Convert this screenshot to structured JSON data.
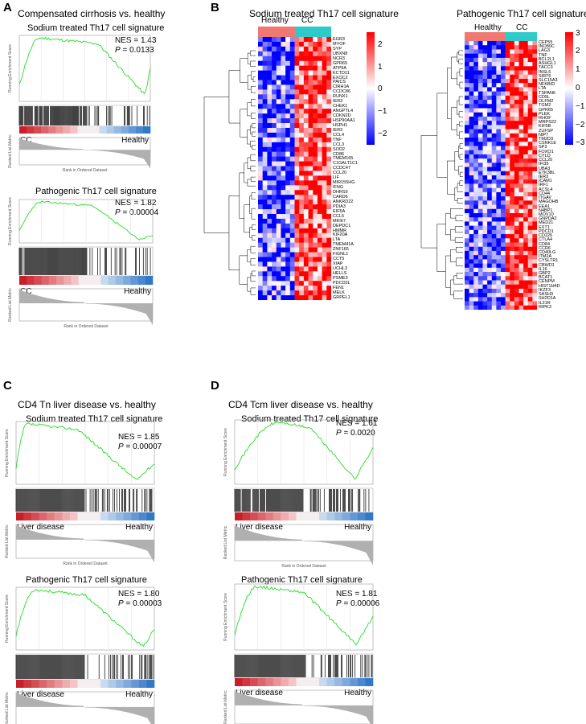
{
  "panels": {
    "A": {
      "label": "A",
      "title": "Compensated cirrhosis vs. healthy",
      "plots": [
        {
          "subtitle": "Sodium treated Th17 cell signature",
          "nes": "NES = 1.43",
          "p_label": "P",
          "p_value": " = 0.0133",
          "left_label": "CC",
          "right_label": "Healthy"
        },
        {
          "subtitle": "Pathogenic  Th17 cell signature",
          "nes": "NES = 1.82",
          "p_label": "P",
          "p_value": " = 0.00004",
          "left_label": "CC",
          "right_label": "Healthy"
        }
      ]
    },
    "B": {
      "label": "B",
      "heatmaps": [
        {
          "title": "Sodium treated Th17 cell signature",
          "group_left": "Healthy",
          "group_right": "CC",
          "legend_ticks": [
            "2",
            "1",
            "0",
            "−1",
            "−2"
          ],
          "genes": [
            "EGR3",
            "MYOF",
            "SYP",
            "UBXN8",
            "NCR3",
            "GPR65",
            "ATP9A",
            "KCTD11",
            "EXOC2",
            "PAICS",
            "CIRH1A",
            "CCDC86",
            "RUNX1",
            "IER3",
            "CHEK1",
            "ANGPTL4",
            "CDKN2D",
            "HSP90AA1",
            "HSPH1",
            "IER3",
            "CCL4",
            "TNF",
            "CCL3",
            "SOD2",
            "CD86",
            "TMEM165",
            "C1GALT1C1",
            "CCDC47",
            "CCL20",
            "LIF",
            "MIR155HG",
            "IFNG",
            "DHRS9",
            "CARD6",
            "ANKRD22",
            "PDIA3",
            "EIF5A",
            "CCL5",
            "MKI67",
            "DEPDC1",
            "HMMR",
            "KIF20A",
            "LTA",
            "TMEM41A",
            "ZNF165",
            "FIGNL1",
            "CCT5",
            "XIAP",
            "UCHL3",
            "HELLS",
            "PSME3",
            "PDCD2L",
            "FEN1",
            "MELK",
            "GRPEL1"
          ]
        },
        {
          "title": "Pathogenic  Th17 cell signature",
          "group_left": "Healthy",
          "group_right": "CC",
          "legend_ticks": [
            "3",
            "2",
            "1",
            "0",
            "−1",
            "−2",
            "−3"
          ],
          "genes": [
            "CEP55",
            "INO80C",
            "LAG3",
            "TNF",
            "BCL2L1",
            "ASHGL1",
            "TACC3",
            "INSL6",
            "SIRT6",
            "SLC15A3",
            "NFKBID",
            "LTA",
            "TSPAN6",
            "CD5L",
            "OLFM2",
            "TGM2",
            "GPR65",
            "PLEK",
            "RHOF",
            "MRPS22",
            "KIF5B",
            "ZUFSP",
            "NIP7",
            "TM2D3",
            "CSNK1E",
            "SP3",
            "FOXO1",
            "CYLD",
            "CCL20",
            "IFI35",
            "UBA3",
            "ETK3BL",
            "IER3",
            "ICAM1",
            "IRF1",
            "ACSL4",
            "CD44",
            "ITGAV",
            "MAGOHB",
            "EEA1",
            "N4BP1",
            "MOV10",
            "GNPDA2",
            "MED21",
            "EXT1",
            "PDCD1",
            "CD226",
            "CTLA4",
            "CD84",
            "CCR6",
            "CD40LG",
            "ITM2A",
            "CYSLTR1",
            "CBWD1",
            "IL16",
            "GBP2",
            "BCAT1",
            "CENPM",
            "HIST1H4D",
            "IKZF3",
            "SASH3",
            "SH2D1A",
            "IL21R",
            "RIPK3"
          ]
        }
      ]
    },
    "C": {
      "label": "C",
      "title": "CD4 Tn liver disease vs. healthy",
      "plots": [
        {
          "subtitle": "Sodium treated Th17 cell signature",
          "nes": "NES = 1.85",
          "p_label": "P",
          "p_value": " = 0.00007",
          "left_label": "Liver disease",
          "right_label": "Healthy"
        },
        {
          "subtitle": "Pathogenic  Th17 cell signature",
          "nes": "NES = 1.80",
          "p_label": "P",
          "p_value": " = 0.00003",
          "left_label": "Liver disease",
          "right_label": "Healthy"
        }
      ]
    },
    "D": {
      "label": "D",
      "title": "CD4 Tcm liver disease vs. healthy",
      "plots": [
        {
          "subtitle": "Sodium treated Th17 cell signature",
          "nes": "NES = 1.61",
          "p_label": "P",
          "p_value": " = 0.0020",
          "left_label": "Liver disease",
          "right_label": "Healthy"
        },
        {
          "subtitle": "Pathogenic  Th17 cell signature",
          "nes": "NES = 1.81",
          "p_label": "P",
          "p_value": " = 0.00006",
          "left_label": "Liver disease",
          "right_label": "Healthy"
        }
      ]
    }
  },
  "axis_text": {
    "es_ylabel": "Running Enrichment Score",
    "rank_ylabel": "Ranked List Metric",
    "rank_xlabel": "Rank in Ordered Dataset"
  },
  "colors": {
    "enrichment_line": "#22dd22",
    "healthy_bar": "#f07872",
    "cc_bar": "#2ec9c9",
    "rank_fill": "#b0b0b0",
    "heat_high": "#ff0000",
    "heat_mid": "#ffffff",
    "heat_low": "#0000ff"
  }
}
